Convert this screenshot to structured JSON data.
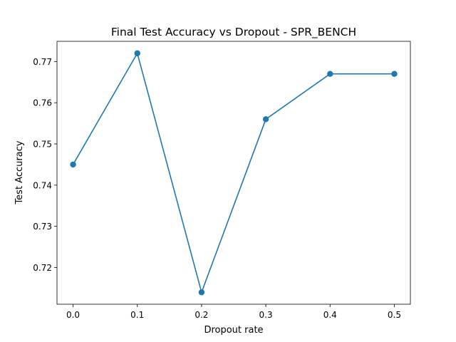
{
  "chart_data": {
    "type": "line",
    "title": "Final Test Accuracy vs Dropout - SPR_BENCH",
    "xlabel": "Dropout rate",
    "ylabel": "Test Accuracy",
    "x": [
      0.0,
      0.1,
      0.2,
      0.3,
      0.4,
      0.5
    ],
    "series": [
      {
        "values": [
          0.745,
          0.772,
          0.714,
          0.756,
          0.767,
          0.767
        ],
        "color": "#1f77b4",
        "marker": "circle"
      }
    ],
    "xticks": [
      "0.0",
      "0.1",
      "0.2",
      "0.3",
      "0.4",
      "0.5"
    ],
    "yticks": [
      "0.72",
      "0.73",
      "0.74",
      "0.75",
      "0.76",
      "0.77"
    ],
    "xlim": [
      -0.025,
      0.525
    ],
    "ylim": [
      0.7111,
      0.7749
    ],
    "grid": false
  }
}
